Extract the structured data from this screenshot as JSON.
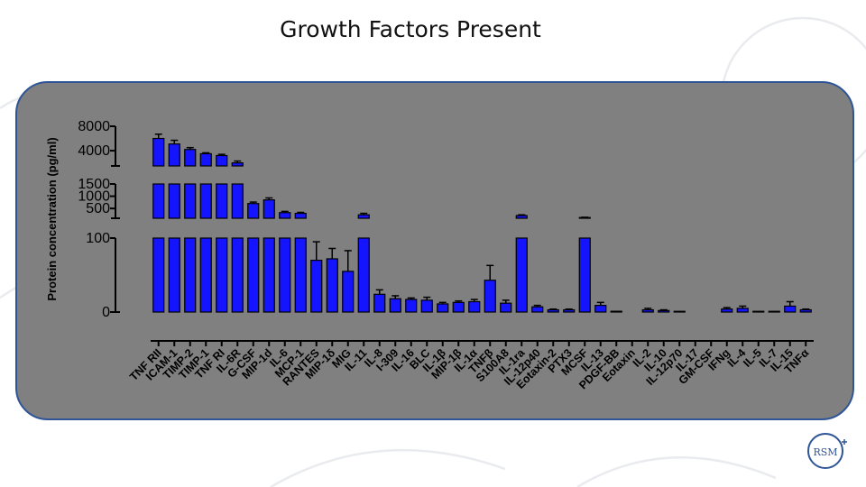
{
  "slide": {
    "title": "Growth Factors Present",
    "logo_text": "RSM",
    "colors": {
      "panel_fill": "#808080",
      "panel_border": "#2f5597",
      "bar_fill": "#1414ff",
      "logo": "#2f5597"
    }
  },
  "chart_data": {
    "type": "bar",
    "title": "",
    "xlabel": "",
    "ylabel": "Protein concentration (pg/ml)",
    "y_axis_segments": [
      {
        "range": [
          0,
          100
        ],
        "ticks": [
          0,
          100
        ]
      },
      {
        "range": [
          100,
          1500
        ],
        "ticks": [
          500,
          1000,
          1500
        ]
      },
      {
        "range": [
          1500,
          8000
        ],
        "ticks": [
          4000,
          8000
        ]
      }
    ],
    "grid": false,
    "legend": "none",
    "categories": [
      "TNF RII",
      "ICAM-1",
      "TIMP-2",
      "TIMP-1",
      "TNF RI",
      "IL-6R",
      "G-CSF",
      "MIP-1d",
      "IL-6",
      "MCP-1",
      "RANTES",
      "MIP-1δ",
      "MIG",
      "IL-11",
      "IL-8",
      "I-309",
      "IL-16",
      "BLC",
      "IL-1β",
      "MIP-1β",
      "IL-1α",
      "TNFβ",
      "S100A8",
      "IL-1ra",
      "IL-12p40",
      "Eotaxin-2",
      "PTX3",
      "MCSF",
      "IL-13",
      "PDGF-BB",
      "Eotaxin",
      "IL-2",
      "IL-10",
      "IL-12p70",
      "IL-17",
      "GM-CSF",
      "IFNg",
      "IL-4",
      "IL-5",
      "IL-7",
      "IL-15",
      "TNFα"
    ],
    "values": [
      6000,
      5100,
      4200,
      3500,
      3200,
      2000,
      700,
      850,
      330,
      300,
      70,
      72,
      55,
      240,
      24,
      18,
      17,
      16,
      11,
      13,
      14,
      43,
      12,
      210,
      7,
      3,
      3,
      130,
      9,
      0.5,
      0,
      3,
      2,
      1,
      0,
      0,
      4,
      5,
      1,
      1,
      8,
      3
    ],
    "errors": [
      700,
      600,
      300,
      150,
      200,
      300,
      60,
      80,
      50,
      40,
      25,
      14,
      28,
      60,
      6,
      4,
      2,
      4,
      2,
      2,
      3,
      20,
      4,
      30,
      2,
      1,
      1,
      10,
      4,
      0,
      0,
      2,
      1,
      0,
      0,
      0,
      2,
      3,
      0,
      0,
      6,
      1
    ]
  }
}
